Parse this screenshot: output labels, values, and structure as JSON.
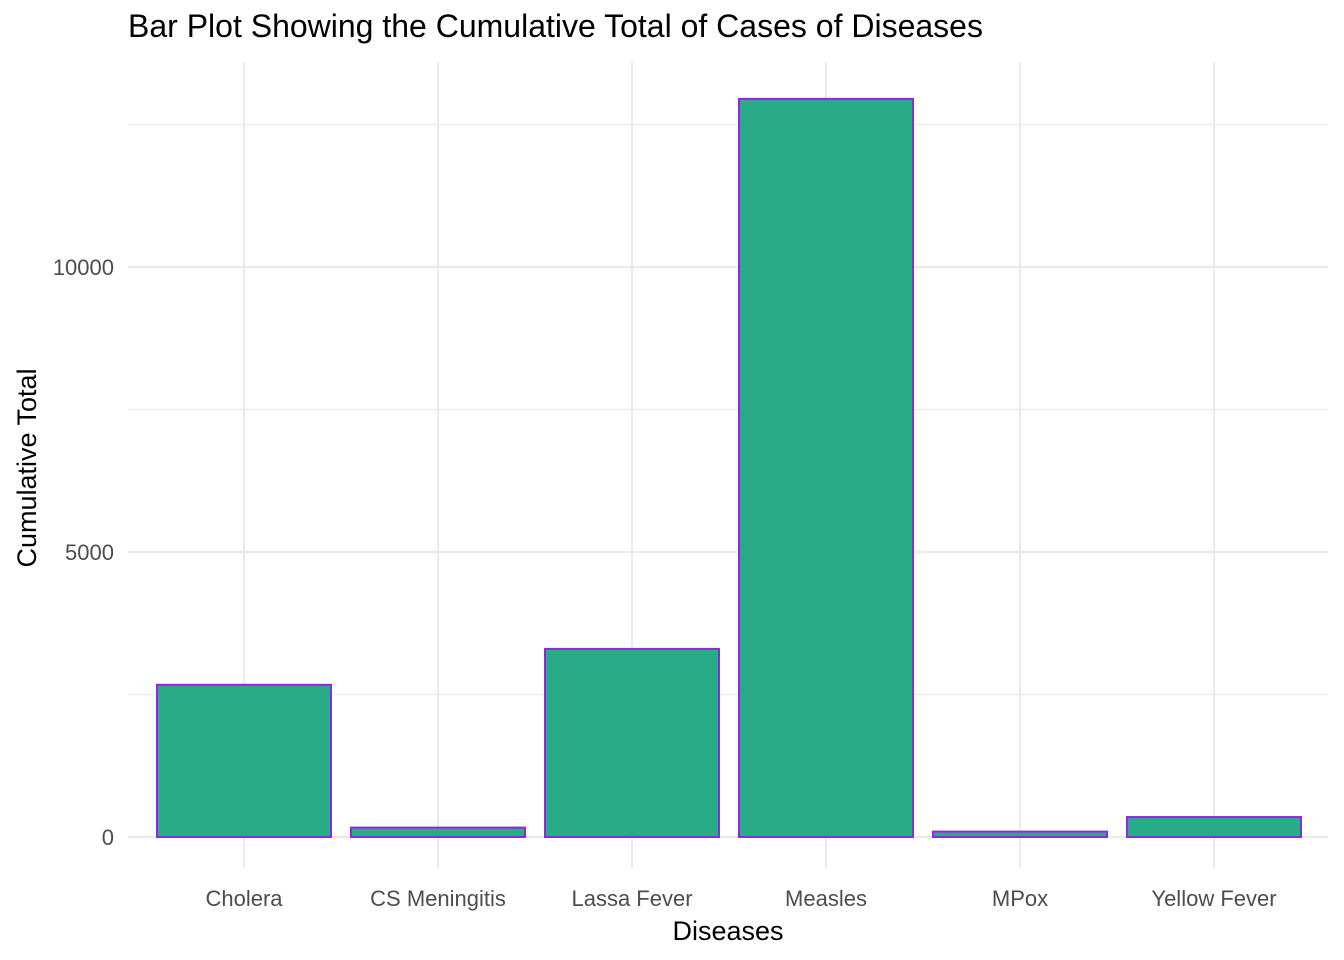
{
  "chart_data": {
    "type": "bar",
    "title": "Bar Plot Showing the Cumulative Total of Cases of Diseases",
    "xlabel": "Diseases",
    "ylabel": "Cumulative Total",
    "categories": [
      "Cholera",
      "CS Meningitis",
      "Lassa Fever",
      "Measles",
      "MPox",
      "Yellow Fever"
    ],
    "values": [
      2670,
      165,
      3300,
      12950,
      95,
      350
    ],
    "ylim": [
      -650,
      13600
    ],
    "yticks": [
      0,
      5000,
      10000
    ],
    "ytick_labels": [
      "0",
      "5000",
      "10000"
    ],
    "grid": true,
    "legend": "none",
    "colors": {
      "bar_fill": "#29AB87",
      "bar_outline": "#8A2BE2",
      "grid": "#EBEBEB",
      "tick_text": "#4D4D4D",
      "text": "#000000"
    }
  }
}
